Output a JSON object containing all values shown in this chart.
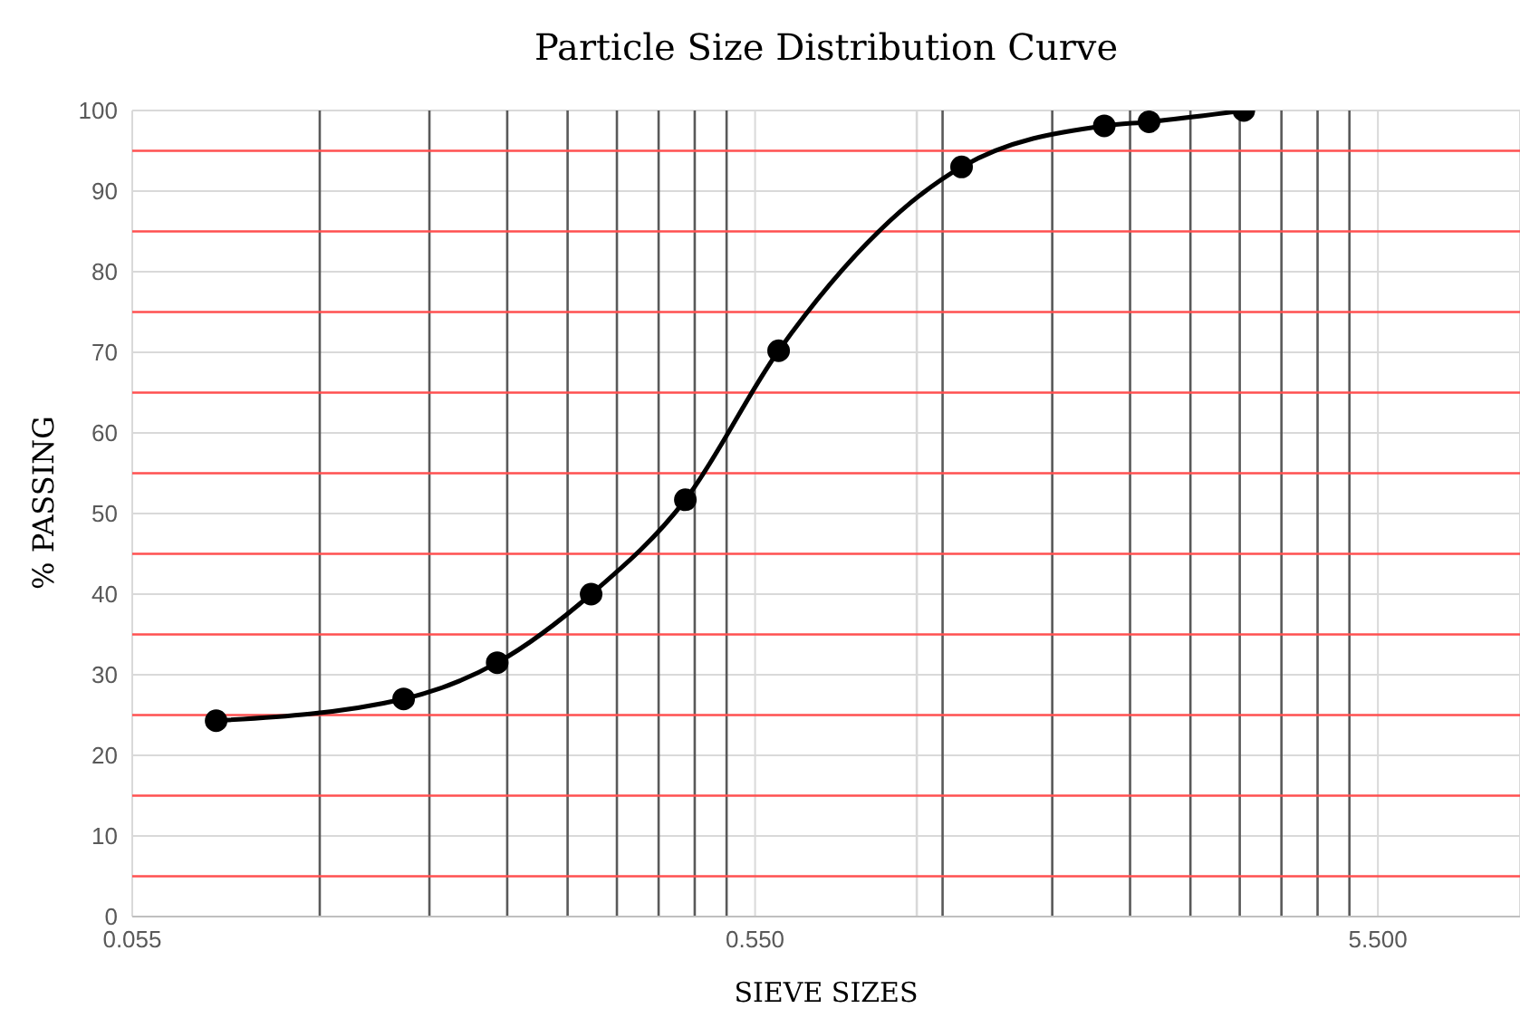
{
  "chart_data": {
    "type": "line",
    "title": "Particle Size Distribution Curve",
    "xlabel": "SIEVE SIZES",
    "ylabel": "% PASSING",
    "x": [
      0.075,
      0.15,
      0.212,
      0.3,
      0.425,
      0.6,
      1.18,
      2,
      2.36,
      3.35
    ],
    "series": [
      {
        "color": "#000000",
        "values": [
          24.3,
          27,
          31.5,
          40,
          51.7,
          70.2,
          93,
          98.1,
          98.6,
          100
        ]
      }
    ],
    "log": "x",
    "xlim": [
      0.055,
      9.3
    ],
    "xticks": [
      {
        "value": 0.055,
        "label": "0.055"
      },
      {
        "value": 0.55,
        "label": "0.550"
      },
      {
        "value": 5.5,
        "label": "5.500"
      }
    ],
    "ylim": [
      0,
      100
    ],
    "yticks": [
      0,
      10,
      20,
      30,
      40,
      50,
      60,
      70,
      80,
      90,
      100
    ],
    "grid": true,
    "marker": "circle",
    "line_style": "solid",
    "legend": false,
    "ref_lines": [
      {
        "axis": "x",
        "value": 0.11,
        "color": "#595959"
      },
      {
        "axis": "x",
        "value": 0.165,
        "color": "#595959"
      },
      {
        "axis": "x",
        "value": 0.22,
        "color": "#595959"
      },
      {
        "axis": "x",
        "value": 0.275,
        "color": "#595959"
      },
      {
        "axis": "x",
        "value": 0.33,
        "color": "#595959"
      },
      {
        "axis": "x",
        "value": 0.385,
        "color": "#595959"
      },
      {
        "axis": "x",
        "value": 0.44,
        "color": "#595959"
      },
      {
        "axis": "x",
        "value": 0.495,
        "color": "#595959"
      },
      {
        "axis": "x",
        "value": 1,
        "color": "#d9d9d9"
      },
      {
        "axis": "x",
        "value": 1.1,
        "color": "#595959"
      },
      {
        "axis": "x",
        "value": 1.65,
        "color": "#595959"
      },
      {
        "axis": "x",
        "value": 2.2,
        "color": "#595959"
      },
      {
        "axis": "x",
        "value": 2.75,
        "color": "#595959"
      },
      {
        "axis": "x",
        "value": 3.3,
        "color": "#595959"
      },
      {
        "axis": "x",
        "value": 3.85,
        "color": "#595959"
      },
      {
        "axis": "x",
        "value": 4.4,
        "color": "#595959"
      },
      {
        "axis": "x",
        "value": 4.95,
        "color": "#595959"
      },
      {
        "axis": "y",
        "value": 5,
        "color": "#ff5050"
      },
      {
        "axis": "y",
        "value": 15,
        "color": "#ff5050"
      },
      {
        "axis": "y",
        "value": 25,
        "color": "#ff5050"
      },
      {
        "axis": "y",
        "value": 35,
        "color": "#ff5050"
      },
      {
        "axis": "y",
        "value": 45,
        "color": "#ff5050"
      },
      {
        "axis": "y",
        "value": 55,
        "color": "#ff5050"
      },
      {
        "axis": "y",
        "value": 65,
        "color": "#ff5050"
      },
      {
        "axis": "y",
        "value": 75,
        "color": "#ff5050"
      },
      {
        "axis": "y",
        "value": 85,
        "color": "#ff5050"
      },
      {
        "axis": "y",
        "value": 95,
        "color": "#ff5050"
      }
    ]
  }
}
